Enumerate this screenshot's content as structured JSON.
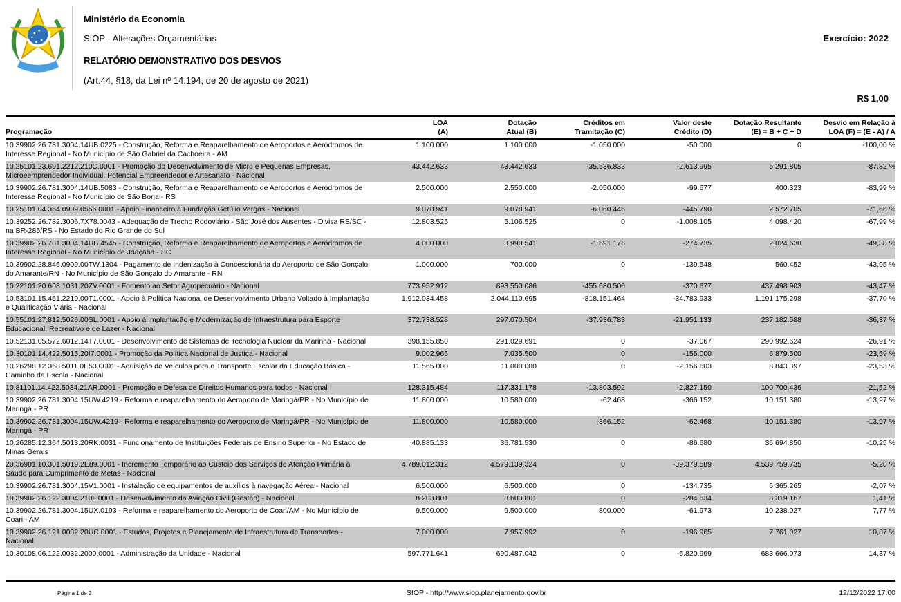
{
  "header": {
    "ministry": "Ministério da Economia",
    "system": "SIOP - Alterações Orçamentárias",
    "title": "RELATÓRIO DEMONSTRATIVO DOS DESVIOS",
    "legal_reference": "(Art.44, §18, da Lei nº 14.194, de 20 de agosto de 2021)",
    "exercise": "Exercício: 2022",
    "currency_unit": "R$ 1,00",
    "logo": "brazil-coat-of-arms"
  },
  "colors": {
    "stripe": "#c9c9c9",
    "rule": "#000000",
    "logo_green": "#3a8f3a",
    "logo_yellow": "#f3d212",
    "logo_blue": "#2f6fb8",
    "logo_ribbon_blue": "#4a9fe0"
  },
  "table": {
    "columns": [
      "Programação",
      "LOA\n(A)",
      "Dotação\nAtual (B)",
      "Créditos em\nTramitação (C)",
      "Valor deste\nCrédito (D)",
      "Dotação Resultante\n(E) = B + C + D",
      "Desvio em Relação à\nLOA (F) = (E - A) / A"
    ],
    "rows": [
      {
        "programacao": "10.39902.26.781.3004.14UB.0225 - Construção, Reforma e Reaparelhamento de Aeroportos e Aeródromos de Interesse Regional - No Município de São Gabriel da Cachoeira - AM",
        "loa": "1.100.000",
        "dotacao_atual": "1.100.000",
        "creditos_tramitacao": "-1.050.000",
        "valor_credito": "-50.000",
        "dotacao_resultante": "0",
        "desvio": "-100,00 %"
      },
      {
        "programacao": "10.25101.23.691.2212.210C.0001 - Promoção do Desenvolvimento de Micro e Pequenas Empresas, Microeemprendedor Individual, Potencial Empreendedor e Artesanato - Nacional",
        "loa": "43.442.633",
        "dotacao_atual": "43.442.633",
        "creditos_tramitacao": "-35.536.833",
        "valor_credito": "-2.613.995",
        "dotacao_resultante": "5.291.805",
        "desvio": "-87,82 %"
      },
      {
        "programacao": "10.39902.26.781.3004.14UB.5083 - Construção, Reforma e Reaparelhamento de Aeroportos e Aeródromos de Interesse Regional - No Município de São Borja - RS",
        "loa": "2.500.000",
        "dotacao_atual": "2.550.000",
        "creditos_tramitacao": "-2.050.000",
        "valor_credito": "-99.677",
        "dotacao_resultante": "400.323",
        "desvio": "-83,99 %"
      },
      {
        "programacao": "10.25101.04.364.0909.0556.0001 - Apoio Financeiro à Fundação Getúlio Vargas - Nacional",
        "loa": "9.078.941",
        "dotacao_atual": "9.078.941",
        "creditos_tramitacao": "-6.060.446",
        "valor_credito": "-445.790",
        "dotacao_resultante": "2.572.705",
        "desvio": "-71,66 %"
      },
      {
        "programacao": "10.39252.26.782.3006.7X78.0043 - Adequação de Trecho Rodoviário - São José dos Ausentes - Divisa RS/SC - na BR-285/RS - No Estado do Rio Grande do Sul",
        "loa": "12.803.525",
        "dotacao_atual": "5.106.525",
        "creditos_tramitacao": "0",
        "valor_credito": "-1.008.105",
        "dotacao_resultante": "4.098.420",
        "desvio": "-67,99 %"
      },
      {
        "programacao": "10.39902.26.781.3004.14UB.4545 - Construção, Reforma e Reaparelhamento de Aeroportos e Aeródromos de Interesse Regional - No Município de Joaçaba - SC",
        "loa": "4.000.000",
        "dotacao_atual": "3.990.541",
        "creditos_tramitacao": "-1.691.176",
        "valor_credito": "-274.735",
        "dotacao_resultante": "2.024.630",
        "desvio": "-49,38 %"
      },
      {
        "programacao": "10.39902.28.846.0909.00TW.1304 - Pagamento de Indenização à Concessionária do Aeroporto de São Gonçalo do Amarante/RN - No Município de São Gonçalo do Amarante - RN",
        "loa": "1.000.000",
        "dotacao_atual": "700.000",
        "creditos_tramitacao": "0",
        "valor_credito": "-139.548",
        "dotacao_resultante": "560.452",
        "desvio": "-43,95 %"
      },
      {
        "programacao": "10.22101.20.608.1031.20ZV.0001 - Fomento ao Setor Agropecuário - Nacional",
        "loa": "773.952.912",
        "dotacao_atual": "893.550.086",
        "creditos_tramitacao": "-455.680.506",
        "valor_credito": "-370.677",
        "dotacao_resultante": "437.498.903",
        "desvio": "-43,47 %"
      },
      {
        "programacao": "10.53101.15.451.2219.00T1.0001 - Apoio à Política Nacional de Desenvolvimento Urbano Voltado à Implantação e Qualificação Viária - Nacional",
        "loa": "1.912.034.458",
        "dotacao_atual": "2.044.110.695",
        "creditos_tramitacao": "-818.151.464",
        "valor_credito": "-34.783.933",
        "dotacao_resultante": "1.191.175.298",
        "desvio": "-37,70 %"
      },
      {
        "programacao": "10.55101.27.812.5026.00SL.0001 - Apoio à Implantação e Modernização de Infraestrutura para Esporte Educacional, Recreativo e de Lazer - Nacional",
        "loa": "372.738.528",
        "dotacao_atual": "297.070.504",
        "creditos_tramitacao": "-37.936.783",
        "valor_credito": "-21.951.133",
        "dotacao_resultante": "237.182.588",
        "desvio": "-36,37 %"
      },
      {
        "programacao": "10.52131.05.572.6012.14T7.0001 - Desenvolvimento de Sistemas de Tecnologia Nuclear da Marinha - Nacional",
        "loa": "398.155.850",
        "dotacao_atual": "291.029.691",
        "creditos_tramitacao": "0",
        "valor_credito": "-37.067",
        "dotacao_resultante": "290.992.624",
        "desvio": "-26,91 %"
      },
      {
        "programacao": "10.30101.14.422.5015.20I7.0001 - Promoção da Política Nacional de Justiça - Nacional",
        "loa": "9.002.965",
        "dotacao_atual": "7.035.500",
        "creditos_tramitacao": "0",
        "valor_credito": "-156.000",
        "dotacao_resultante": "6.879.500",
        "desvio": "-23,59 %"
      },
      {
        "programacao": "10.26298.12.368.5011.0E53.0001 - Aquisição de Veículos para o Transporte Escolar da Educação Básica - Caminho da Escola - Nacional",
        "loa": "11.565.000",
        "dotacao_atual": "11.000.000",
        "creditos_tramitacao": "0",
        "valor_credito": "-2.156.603",
        "dotacao_resultante": "8.843.397",
        "desvio": "-23,53 %"
      },
      {
        "programacao": "10.81101.14.422.5034.21AR.0001 - Promoção e Defesa de Direitos Humanos para todos - Nacional",
        "loa": "128.315.484",
        "dotacao_atual": "117.331.178",
        "creditos_tramitacao": "-13.803.592",
        "valor_credito": "-2.827.150",
        "dotacao_resultante": "100.700.436",
        "desvio": "-21,52 %"
      },
      {
        "programacao": "10.39902.26.781.3004.15UW.4219 - Reforma e reaparelhamento do Aeroporto de Maringá/PR - No Município de Maringá - PR",
        "loa": "11.800.000",
        "dotacao_atual": "10.580.000",
        "creditos_tramitacao": "-62.468",
        "valor_credito": "-366.152",
        "dotacao_resultante": "10.151.380",
        "desvio": "-13,97 %"
      },
      {
        "programacao": "10.39902.26.781.3004.15UW.4219 - Reforma e reaparelhamento do Aeroporto de Maringá/PR - No Município de Maringá - PR",
        "loa": "11.800.000",
        "dotacao_atual": "10.580.000",
        "creditos_tramitacao": "-366.152",
        "valor_credito": "-62.468",
        "dotacao_resultante": "10.151.380",
        "desvio": "-13,97 %"
      },
      {
        "programacao": "10.26285.12.364.5013.20RK.0031 - Funcionamento de Instituições Federais de Ensino Superior - No Estado de Minas Gerais",
        "loa": "40.885.133",
        "dotacao_atual": "36.781.530",
        "creditos_tramitacao": "0",
        "valor_credito": "-86.680",
        "dotacao_resultante": "36.694.850",
        "desvio": "-10,25 %"
      },
      {
        "programacao": "20.36901.10.301.5019.2E89.0001 - Incremento Temporário ao Custeio dos Serviços de Atenção Primária à Saúde para Cumprimento de Metas - Nacional",
        "loa": "4.789.012.312",
        "dotacao_atual": "4.579.139.324",
        "creditos_tramitacao": "0",
        "valor_credito": "-39.379.589",
        "dotacao_resultante": "4.539.759.735",
        "desvio": "-5,20 %"
      },
      {
        "programacao": "10.39902.26.781.3004.15V1.0001 - Instalação de equipamentos de auxílios à navegação Aérea - Nacional",
        "loa": "6.500.000",
        "dotacao_atual": "6.500.000",
        "creditos_tramitacao": "0",
        "valor_credito": "-134.735",
        "dotacao_resultante": "6.365.265",
        "desvio": "-2,07 %"
      },
      {
        "programacao": "10.39902.26.122.3004.210F.0001 - Desenvolvimento da Aviação Civil (Gestão) - Nacional",
        "loa": "8.203.801",
        "dotacao_atual": "8.603.801",
        "creditos_tramitacao": "0",
        "valor_credito": "-284.634",
        "dotacao_resultante": "8.319.167",
        "desvio": "1,41 %"
      },
      {
        "programacao": "10.39902.26.781.3004.15UX.0193 - Reforma e reaparelhamento do Aeroporto de Coari/AM - No Município de Coari - AM",
        "loa": "9.500.000",
        "dotacao_atual": "9.500.000",
        "creditos_tramitacao": "800.000",
        "valor_credito": "-61.973",
        "dotacao_resultante": "10.238.027",
        "desvio": "7,77 %"
      },
      {
        "programacao": "10.39902.26.121.0032.20UC.0001 - Estudos, Projetos e Planejamento de Infraestrutura de Transportes - Nacional",
        "loa": "7.000.000",
        "dotacao_atual": "7.957.992",
        "creditos_tramitacao": "0",
        "valor_credito": "-196.965",
        "dotacao_resultante": "7.761.027",
        "desvio": "10,87 %"
      },
      {
        "programacao": "10.30108.06.122.0032.2000.0001 - Administração da Unidade - Nacional",
        "loa": "597.771.641",
        "dotacao_atual": "690.487.042",
        "creditos_tramitacao": "0",
        "valor_credito": "-6.820.969",
        "dotacao_resultante": "683.666.073",
        "desvio": "14,37 %"
      }
    ]
  },
  "footer": {
    "page": "Página 1 de 2",
    "source": "SIOP - http://www.siop.planejamento.gov.br",
    "timestamp": "12/12/2022 17:00"
  }
}
